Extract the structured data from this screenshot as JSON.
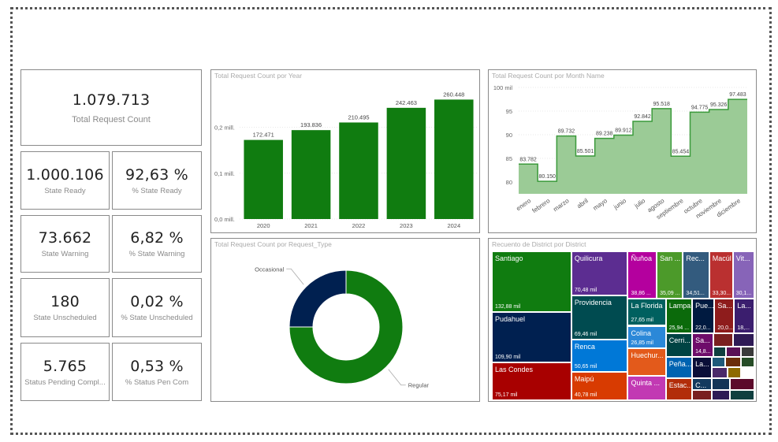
{
  "kpis": {
    "total": {
      "value": "1.079.713",
      "label": "Total Request Count"
    },
    "state_ready": {
      "value": "1.000.106",
      "label": "State Ready"
    },
    "pct_state_ready": {
      "value": "92,63 %",
      "label": "% State Ready"
    },
    "state_warning": {
      "value": "73.662",
      "label": "State Warning"
    },
    "pct_state_warning": {
      "value": "6,82 %",
      "label": "% State Warning"
    },
    "state_unscheduled": {
      "value": "180",
      "label": "State Unscheduled"
    },
    "pct_state_unscheduled": {
      "value": "0,02 %",
      "label": "% State Unscheduled"
    },
    "status_pending": {
      "value": "5.765",
      "label": "Status Pending Compl..."
    },
    "pct_status_pending": {
      "value": "0,53 %",
      "label": "% Status Pen Com"
    }
  },
  "colors": {
    "green": "#107C10",
    "navy": "#002050",
    "area_fill": "#9BCB96",
    "area_line": "#3B9A3B"
  },
  "chart_data": [
    {
      "type": "bar",
      "title": "Total Request Count por Year",
      "categories": [
        "2020",
        "2021",
        "2022",
        "2023",
        "2024"
      ],
      "values": [
        172471,
        193836,
        210495,
        242463,
        260448
      ],
      "data_labels": [
        "172.471",
        "193.836",
        "210.495",
        "242.463",
        "260.448"
      ],
      "y_ticks": [
        0,
        100000,
        200000
      ],
      "y_tick_labels": [
        "0,0 mill.",
        "0,1 mill.",
        "0,2 mill."
      ],
      "ylim": [
        0,
        280000
      ],
      "grid": true
    },
    {
      "type": "area",
      "title": "Total Request Count por Month Name",
      "categories": [
        "enero",
        "febrero",
        "marzo",
        "abril",
        "mayo",
        "junio",
        "julio",
        "agosto",
        "septiembre",
        "octubre",
        "noviembre",
        "diciembre"
      ],
      "values": [
        83782,
        80150,
        89732,
        85501,
        89238,
        89912,
        92842,
        95518,
        85454,
        94775,
        95326,
        97483
      ],
      "data_labels": [
        "83.782",
        "80.150",
        "89.732",
        "85.501",
        "89.238",
        "89.912",
        "92.842",
        "95.518",
        "85.454",
        "94.775",
        "95.326",
        "97.483"
      ],
      "y_ticks": [
        80000,
        85000,
        90000,
        95000,
        100000
      ],
      "y_tick_labels": [
        "80",
        "85",
        "90",
        "95",
        "100 mil"
      ],
      "ylim": [
        77500,
        100000
      ],
      "step": true,
      "grid": true
    },
    {
      "type": "pie",
      "donut": true,
      "title": "Total Request Count por Request_Type",
      "labels": [
        "Regular",
        "Occasional"
      ],
      "values": [
        75,
        25
      ]
    },
    {
      "type": "treemap",
      "title": "Recuento de District por District",
      "items": [
        {
          "name": "Santiago",
          "label": "132,88 mil",
          "color": "#107C10"
        },
        {
          "name": "Pudahuel",
          "label": "109,90 mil",
          "color": "#002050"
        },
        {
          "name": "Las Condes",
          "label": "75,17 mil",
          "color": "#A80000"
        },
        {
          "name": "Quilicura",
          "label": "70,48 mil",
          "color": "#5C2D91"
        },
        {
          "name": "Providencia",
          "label": "69,46 mil",
          "color": "#004B50"
        },
        {
          "name": "Renca",
          "label": "50,65 mil",
          "color": "#0078D7"
        },
        {
          "name": "Maipú",
          "label": "40,78 mil",
          "color": "#D83B01"
        },
        {
          "name": "Ñuñoa",
          "label": "38,86 ...",
          "color": "#B4009E"
        },
        {
          "name": "San ...",
          "label": "35,09 ...",
          "color": "#4C9A2A"
        },
        {
          "name": "Rec...",
          "label": "34,51...",
          "color": "#335B7E"
        },
        {
          "name": "Macúl",
          "label": "33,30...",
          "color": "#BA3030"
        },
        {
          "name": "Vit...",
          "label": "30,1...",
          "color": "#8764B8"
        },
        {
          "name": "La Florida",
          "label": "27,65 mil",
          "color": "#00605F"
        },
        {
          "name": "Colina",
          "label": "26,85 mil",
          "color": "#2B88D8"
        },
        {
          "name": "Huechur...",
          "label": "",
          "color": "#E35A1B"
        },
        {
          "name": "Quinta ...",
          "label": "",
          "color": "#C239B3"
        },
        {
          "name": "Lampa",
          "label": "25,94 ...",
          "color": "#0B6A0B"
        },
        {
          "name": "Pue...",
          "label": "22,0...",
          "color": "#001A40"
        },
        {
          "name": "Sa...",
          "label": "20,0...",
          "color": "#8E1C1C"
        },
        {
          "name": "La...",
          "label": "18,...",
          "color": "#3B1E6E"
        },
        {
          "name": "Cerri...",
          "label": "",
          "color": "#004343"
        },
        {
          "name": "Sa...",
          "label": "14,8...",
          "color": "#6E0C6A"
        },
        {
          "name": "Peña...",
          "label": "",
          "color": "#0063B1"
        },
        {
          "name": "La...",
          "label": "",
          "color": "#0A0E38"
        },
        {
          "name": "Estac...",
          "label": "",
          "color": "#B22D0A"
        },
        {
          "name": "C...",
          "label": "",
          "color": "#133A5E"
        }
      ]
    }
  ]
}
